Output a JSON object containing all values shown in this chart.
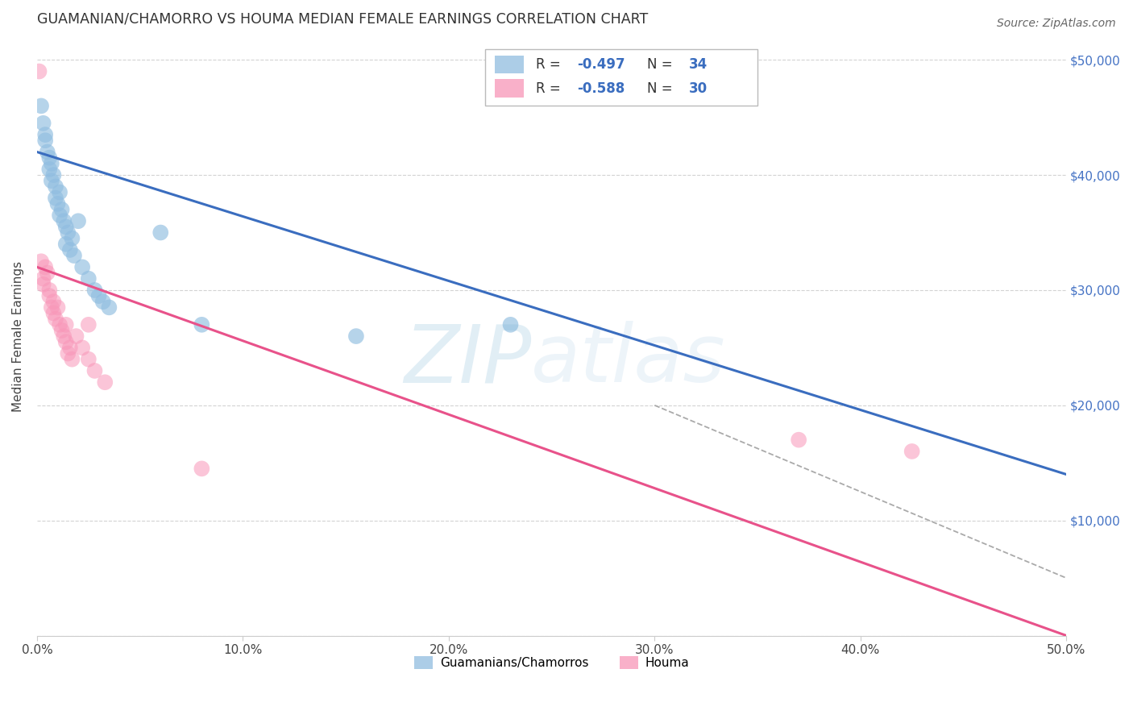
{
  "title": "GUAMANIAN/CHAMORRO VS HOUMA MEDIAN FEMALE EARNINGS CORRELATION CHART",
  "source": "Source: ZipAtlas.com",
  "ylabel": "Median Female Earnings",
  "xlim": [
    0.0,
    0.5
  ],
  "ylim": [
    0,
    52000
  ],
  "yticks": [
    0,
    10000,
    20000,
    30000,
    40000,
    50000
  ],
  "ytick_labels": [
    "",
    "$10,000",
    "$20,000",
    "$30,000",
    "$40,000",
    "$50,000"
  ],
  "xtick_labels": [
    "0.0%",
    "10.0%",
    "20.0%",
    "30.0%",
    "40.0%",
    "50.0%"
  ],
  "xticks": [
    0.0,
    0.1,
    0.2,
    0.3,
    0.4,
    0.5
  ],
  "blue_R": -0.497,
  "blue_N": 34,
  "pink_R": -0.588,
  "pink_N": 30,
  "blue_color": "#90bde0",
  "pink_color": "#f896b8",
  "blue_line_color": "#3a6dbf",
  "pink_line_color": "#e8528a",
  "legend_label_blue": "Guamanians/Chamorros",
  "legend_label_pink": "Houma",
  "blue_x": [
    0.002,
    0.003,
    0.004,
    0.004,
    0.005,
    0.006,
    0.006,
    0.007,
    0.007,
    0.008,
    0.009,
    0.009,
    0.01,
    0.011,
    0.011,
    0.012,
    0.013,
    0.014,
    0.014,
    0.015,
    0.016,
    0.017,
    0.018,
    0.02,
    0.022,
    0.025,
    0.028,
    0.03,
    0.032,
    0.035,
    0.06,
    0.08,
    0.155,
    0.23
  ],
  "blue_y": [
    46000,
    44500,
    43500,
    43000,
    42000,
    41500,
    40500,
    41000,
    39500,
    40000,
    39000,
    38000,
    37500,
    38500,
    36500,
    37000,
    36000,
    35500,
    34000,
    35000,
    33500,
    34500,
    33000,
    36000,
    32000,
    31000,
    30000,
    29500,
    29000,
    28500,
    35000,
    27000,
    26000,
    27000
  ],
  "pink_x": [
    0.001,
    0.002,
    0.003,
    0.003,
    0.004,
    0.005,
    0.006,
    0.006,
    0.007,
    0.008,
    0.008,
    0.009,
    0.01,
    0.011,
    0.012,
    0.013,
    0.014,
    0.014,
    0.015,
    0.016,
    0.017,
    0.019,
    0.022,
    0.025,
    0.025,
    0.028,
    0.033,
    0.08,
    0.37,
    0.425
  ],
  "pink_y": [
    49000,
    32500,
    31000,
    30500,
    32000,
    31500,
    30000,
    29500,
    28500,
    29000,
    28000,
    27500,
    28500,
    27000,
    26500,
    26000,
    25500,
    27000,
    24500,
    25000,
    24000,
    26000,
    25000,
    27000,
    24000,
    23000,
    22000,
    14500,
    17000,
    16000
  ],
  "blue_line_x0": 0.0,
  "blue_line_y0": 42000,
  "blue_line_x1": 0.5,
  "blue_line_y1": 14000,
  "pink_line_x0": 0.0,
  "pink_line_y0": 32000,
  "pink_line_x1": 0.5,
  "pink_line_y1": 0,
  "dash_line_x0": 0.3,
  "dash_line_y0": 20000,
  "dash_line_x1": 0.5,
  "dash_line_y1": 5000,
  "background_color": "#ffffff",
  "grid_color": "#c8c8c8",
  "title_fontsize": 12.5,
  "axis_fontsize": 11,
  "legend_fontsize": 12
}
